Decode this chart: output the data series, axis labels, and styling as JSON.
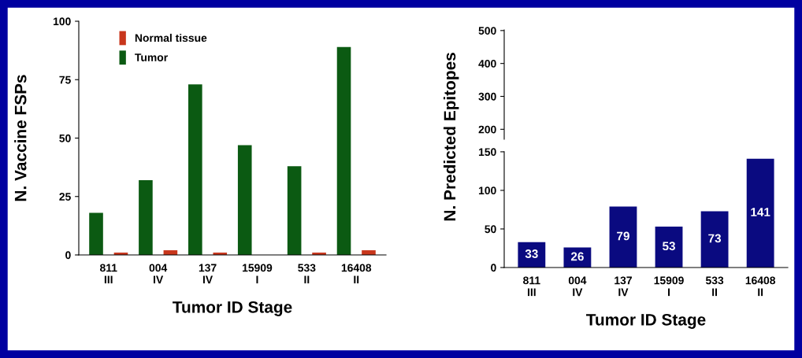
{
  "chart_data": [
    {
      "type": "bar",
      "categories": [
        "811\nIII",
        "004\nIV",
        "137\nIV",
        "15909\nI",
        "533\nII",
        "16408\nII"
      ],
      "xlabel": "Tumor ID Stage",
      "ylabel": "N. Vaccine FSPs",
      "ylim": [
        0,
        100
      ],
      "yticks": [
        0,
        25,
        50,
        75,
        100
      ],
      "legend": "top left",
      "series": [
        {
          "name": "Tumor",
          "color": "#0b5a12",
          "values": [
            18,
            32,
            73,
            47,
            38,
            89
          ]
        },
        {
          "name": "Normal tissue",
          "color": "#c8361c",
          "values": [
            1,
            2,
            1,
            0,
            1,
            2
          ]
        }
      ]
    },
    {
      "type": "bar",
      "categories": [
        "811\nIII",
        "004\nIV",
        "137\nIV",
        "15909\nI",
        "533\nII",
        "16408\nII"
      ],
      "xlabel": "Tumor ID Stage",
      "y2label": "N. Predicted Epitopes",
      "ylim": [
        0,
        308
      ],
      "yticks": [
        0,
        50,
        100,
        150
      ],
      "y2lim": [
        -220,
        502
      ],
      "y2ticks": [
        200,
        300,
        400,
        500
      ],
      "data_labels": true,
      "series": [
        {
          "color": "#0a0a80",
          "values": [
            33,
            26,
            79,
            53,
            73,
            141
          ]
        }
      ]
    }
  ]
}
